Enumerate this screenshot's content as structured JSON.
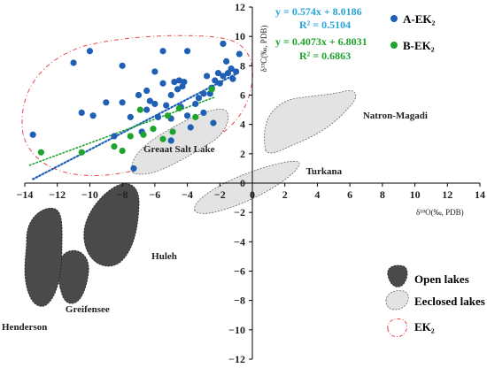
{
  "chart_data": {
    "type": "scatter",
    "x_range": [
      -14,
      14
    ],
    "y_range": [
      -12,
      12
    ],
    "x_ticks": [
      -14,
      -12,
      -10,
      -8,
      -6,
      -4,
      -2,
      0,
      2,
      4,
      6,
      8,
      10,
      12,
      14
    ],
    "y_ticks": [
      12,
      10,
      8,
      6,
      4,
      2,
      0,
      -2,
      -4,
      -6,
      -8,
      -10,
      -12
    ],
    "x_tick_labels": [
      "−14",
      "−12",
      "−10",
      "−8",
      "−6",
      "−4",
      "−2",
      "0",
      "2",
      "4",
      "6",
      "8",
      "10",
      "12",
      "14"
    ],
    "y_tick_labels": [
      "12",
      "10",
      "8",
      "6",
      "4",
      "2",
      "0",
      "−2",
      "−4",
      "−6",
      "−8",
      "−10",
      "−12"
    ],
    "xlabel": "δ¹⁸O(‰, PDB)",
    "ylabel": "δ¹³C(‰, PDB)",
    "series": [
      {
        "name": "A-EK₂",
        "color": "#1f5fb5",
        "equation": "y = 0.574x + 8.0186",
        "r2": "R² = 0.5104",
        "equation_color": "#2aa3d9",
        "trendline": {
          "slope": 0.574,
          "intercept": 8.0186,
          "x_from": -13.5,
          "x_to": -1
        },
        "points": [
          [
            -13.5,
            3.3
          ],
          [
            -11,
            8.2
          ],
          [
            -10,
            9.0
          ],
          [
            -10.5,
            4.8
          ],
          [
            -9.8,
            4.6
          ],
          [
            -9,
            5.5
          ],
          [
            -8.5,
            3.2
          ],
          [
            -8,
            8.0
          ],
          [
            -8,
            5.5
          ],
          [
            -7.5,
            4.5
          ],
          [
            -7,
            6.0
          ],
          [
            -6.8,
            3.5
          ],
          [
            -6.5,
            6.3
          ],
          [
            -6.5,
            5.0
          ],
          [
            -6.3,
            5.6
          ],
          [
            -6,
            7.6
          ],
          [
            -6,
            5.4
          ],
          [
            -5.8,
            4.5
          ],
          [
            -5.5,
            9.0
          ],
          [
            -5.5,
            6.8
          ],
          [
            -5.3,
            5.3
          ],
          [
            -5,
            6.0
          ],
          [
            -5,
            4.4
          ],
          [
            -5,
            2.9
          ],
          [
            -4.8,
            6.9
          ],
          [
            -4.6,
            6.4
          ],
          [
            -4.5,
            7.0
          ],
          [
            -4.4,
            5.2
          ],
          [
            -4.3,
            6.6
          ],
          [
            -4,
            9.0
          ],
          [
            -4,
            4.6
          ],
          [
            -3.8,
            3.8
          ],
          [
            -3.5,
            5.4
          ],
          [
            -3,
            6.1
          ],
          [
            -3,
            4.8
          ],
          [
            -2.8,
            7.3
          ],
          [
            -2.5,
            6.5
          ],
          [
            -2.4,
            4.1
          ],
          [
            -2.3,
            7.0
          ],
          [
            -2.1,
            7.5
          ],
          [
            -2,
            6.8
          ],
          [
            -1.8,
            7.3
          ],
          [
            -1.6,
            8.3
          ],
          [
            -1.5,
            7.5
          ],
          [
            -1.3,
            7.8
          ],
          [
            -1.2,
            7.1
          ],
          [
            -1,
            7.6
          ],
          [
            -1.8,
            9.5
          ],
          [
            -0.8,
            8.8
          ],
          [
            -2.6,
            6.1
          ],
          [
            -3.3,
            5.8
          ],
          [
            -4.2,
            6.9
          ],
          [
            -7.3,
            1.0
          ]
        ]
      },
      {
        "name": "B-EK₂",
        "color": "#1ea32d",
        "equation": "y = 0.4073x + 6.8031",
        "r2": "R² = 0.6863",
        "equation_color": "#1ea32d",
        "trendline": {
          "slope": 0.4073,
          "intercept": 6.8031,
          "x_from": -13.7,
          "x_to": -2.3
        },
        "points": [
          [
            -13,
            2.1
          ],
          [
            -10.5,
            2.1
          ],
          [
            -8.5,
            2.5
          ],
          [
            -8,
            2.2
          ],
          [
            -7.5,
            3.2
          ],
          [
            -6.9,
            5.0
          ],
          [
            -6.1,
            3.7
          ],
          [
            -5.5,
            3.0
          ],
          [
            -5.2,
            4.6
          ],
          [
            -4.5,
            5.1
          ],
          [
            -3.5,
            4.5
          ],
          [
            -2.5,
            6.4
          ],
          [
            -6.7,
            3.3
          ],
          [
            -4.9,
            3.5
          ]
        ]
      }
    ],
    "annotations": [
      {
        "text": "Greaat Salt Lake",
        "x": -6.7,
        "y": 2.1
      },
      {
        "text": "Natron-Magadi",
        "x": 6.8,
        "y": 4.4
      },
      {
        "text": "Turkana",
        "x": 3.3,
        "y": 0.6
      },
      {
        "text": "Huleh",
        "x": -6.2,
        "y": -5.2
      },
      {
        "text": "Greifensee",
        "x": -11.5,
        "y": -8.8
      },
      {
        "text": "Henderson",
        "x": -16.1,
        "y": -10.0
      }
    ],
    "legend": {
      "position": "bottom-right",
      "items": [
        {
          "label": "Open lakes",
          "style": "dark-fill"
        },
        {
          "label": "Eeclosed lakes",
          "style": "light-fill"
        },
        {
          "label": "EK₂",
          "style": "red-dashed"
        }
      ]
    }
  }
}
